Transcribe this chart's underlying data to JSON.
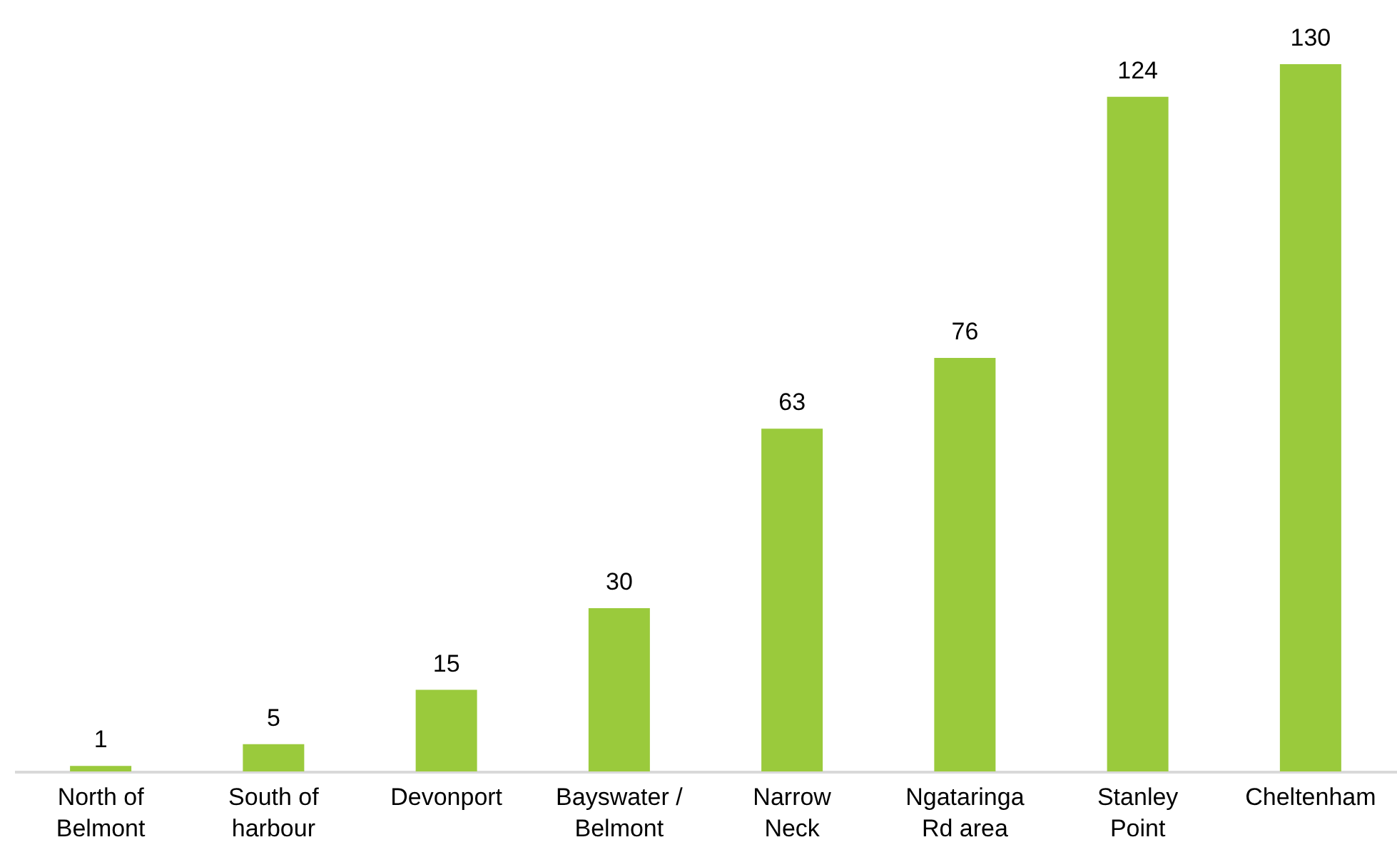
{
  "chart_data": {
    "type": "bar",
    "categories": [
      "North of\nBelmont",
      "South of\nharbour",
      "Devonport",
      "Bayswater /\nBelmont",
      "Narrow\nNeck",
      "Ngataringa\nRd area",
      "Stanley\nPoint",
      "Cheltenham"
    ],
    "values": [
      1,
      5,
      15,
      30,
      63,
      76,
      124,
      130
    ],
    "color": "#9aca3c",
    "data_labels": true
  }
}
